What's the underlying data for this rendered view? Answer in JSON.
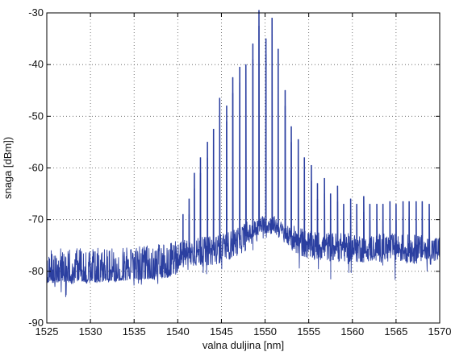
{
  "chart_data": {
    "type": "line",
    "xlabel": "valna duljina [nm]",
    "ylabel": "snaga [dBm])",
    "xlim": [
      1525,
      1570
    ],
    "ylim": [
      -90,
      -30
    ],
    "xticks": [
      1525,
      1530,
      1535,
      1540,
      1545,
      1550,
      1555,
      1560,
      1565,
      1570
    ],
    "yticks": [
      -30,
      -40,
      -50,
      -60,
      -70,
      -80,
      -90
    ],
    "grid": true,
    "grid_style": "dotted",
    "colors": {
      "series": "#2b3fa0",
      "axis": "#000000",
      "grid": "#555555"
    },
    "series": [
      {
        "noise_floor": [
          {
            "x": 1525,
            "y": -79
          },
          {
            "x": 1530,
            "y": -79
          },
          {
            "x": 1535,
            "y": -78.5
          },
          {
            "x": 1539,
            "y": -78
          },
          {
            "x": 1541,
            "y": -76.5
          },
          {
            "x": 1544,
            "y": -76
          },
          {
            "x": 1546,
            "y": -75
          },
          {
            "x": 1548,
            "y": -73
          },
          {
            "x": 1549.5,
            "y": -71
          },
          {
            "x": 1551,
            "y": -71
          },
          {
            "x": 1552.5,
            "y": -73
          },
          {
            "x": 1555,
            "y": -75
          },
          {
            "x": 1560,
            "y": -75.5
          },
          {
            "x": 1565,
            "y": -75.5
          },
          {
            "x": 1570,
            "y": -76
          }
        ],
        "peaks": [
          {
            "x": 1540.6,
            "y": -72
          },
          {
            "x": 1541.3,
            "y": -69
          },
          {
            "x": 1541.9,
            "y": -64
          },
          {
            "x": 1542.6,
            "y": -61
          },
          {
            "x": 1543.4,
            "y": -58
          },
          {
            "x": 1544.1,
            "y": -55.5
          },
          {
            "x": 1544.8,
            "y": -49.5
          },
          {
            "x": 1545.6,
            "y": -51
          },
          {
            "x": 1546.3,
            "y": -45.5
          },
          {
            "x": 1547.1,
            "y": -43.5
          },
          {
            "x": 1547.8,
            "y": -43
          },
          {
            "x": 1548.6,
            "y": -39
          },
          {
            "x": 1549.3,
            "y": -32.5
          },
          {
            "x": 1550.1,
            "y": -38
          },
          {
            "x": 1550.8,
            "y": -34
          },
          {
            "x": 1551.5,
            "y": -40
          },
          {
            "x": 1552.3,
            "y": -48
          },
          {
            "x": 1553.0,
            "y": -55
          },
          {
            "x": 1553.8,
            "y": -57.5
          },
          {
            "x": 1554.5,
            "y": -61
          },
          {
            "x": 1555.3,
            "y": -62.5
          },
          {
            "x": 1556.0,
            "y": -66
          },
          {
            "x": 1556.8,
            "y": -65
          },
          {
            "x": 1557.5,
            "y": -68
          },
          {
            "x": 1558.3,
            "y": -66.5
          },
          {
            "x": 1559.0,
            "y": -70
          },
          {
            "x": 1559.8,
            "y": -69
          },
          {
            "x": 1560.5,
            "y": -70
          },
          {
            "x": 1561.3,
            "y": -68.5
          },
          {
            "x": 1562.0,
            "y": -70
          },
          {
            "x": 1562.8,
            "y": -70
          },
          {
            "x": 1563.5,
            "y": -70
          },
          {
            "x": 1564.3,
            "y": -69.5
          },
          {
            "x": 1565.0,
            "y": -70
          },
          {
            "x": 1565.8,
            "y": -69.5
          },
          {
            "x": 1566.5,
            "y": -69.5
          },
          {
            "x": 1567.3,
            "y": -69.5
          },
          {
            "x": 1568.0,
            "y": -69.5
          },
          {
            "x": 1568.8,
            "y": -70
          }
        ]
      }
    ]
  }
}
